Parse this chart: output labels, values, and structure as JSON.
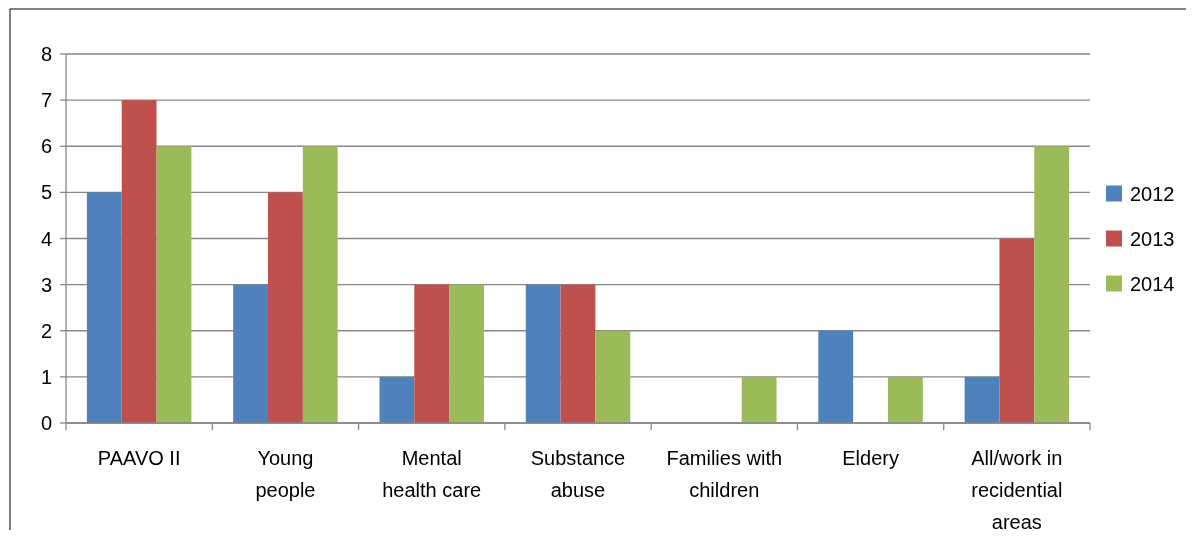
{
  "chart_data": {
    "type": "bar",
    "categories": [
      "PAAVO II",
      "Young people",
      "Mental health care",
      "Substance abuse",
      "Families with children",
      "Eldery",
      "All/work in recidential areas"
    ],
    "series": [
      {
        "name": "2012",
        "color": "#4f81bd",
        "values": [
          5,
          3,
          1,
          3,
          0,
          2,
          1
        ]
      },
      {
        "name": "2013",
        "color": "#c0504d",
        "values": [
          7,
          5,
          3,
          3,
          0,
          0,
          4
        ]
      },
      {
        "name": "2014",
        "color": "#9bbb59",
        "values": [
          6,
          6,
          3,
          2,
          1,
          1,
          6
        ]
      }
    ],
    "ylim": [
      0,
      8
    ],
    "yticks": [
      0,
      1,
      2,
      3,
      4,
      5,
      6,
      7,
      8
    ],
    "grid": "y",
    "legend": "right"
  }
}
